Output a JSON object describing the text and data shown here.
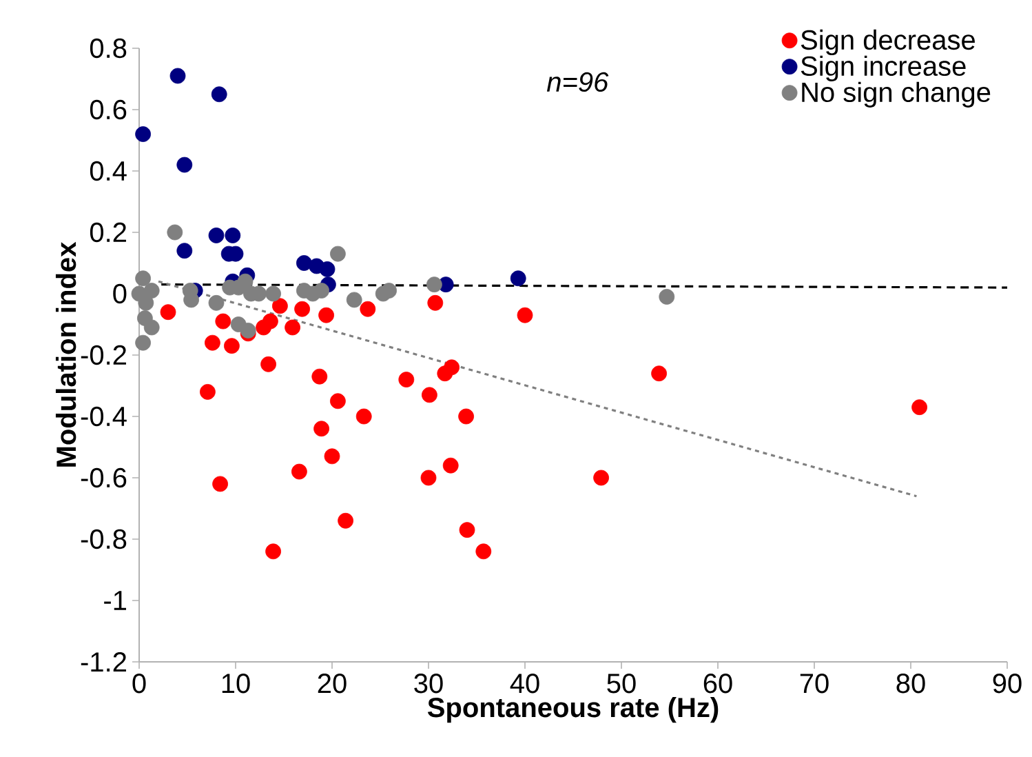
{
  "chart_data": {
    "type": "scatter",
    "xlabel": "Spontaneous rate (Hz)",
    "ylabel": "Modulation index",
    "xlim": [
      0,
      90
    ],
    "ylim": [
      -1.2,
      0.8
    ],
    "xticks": [
      0,
      10,
      20,
      30,
      40,
      50,
      60,
      70,
      80,
      90
    ],
    "yticks": [
      -1.2,
      -1,
      -0.8,
      -0.6,
      -0.4,
      -0.2,
      0,
      0.2,
      0.4,
      0.6,
      0.8
    ],
    "grid": false,
    "legend": "top right",
    "annotations": [
      "n=96"
    ],
    "series": [
      {
        "name": "Sign decrease",
        "marker": "circle",
        "color": "#ff0000",
        "x": [
          3.0,
          7.6,
          8.7,
          9.6,
          7.1,
          8.4,
          11.3,
          12.9,
          13.6,
          14.6,
          13.4,
          13.9,
          15.9,
          16.9,
          19.4,
          16.6,
          18.7,
          18.9,
          20.6,
          20.0,
          21.4,
          23.3,
          23.7,
          27.7,
          30.1,
          30.0,
          30.7,
          31.7,
          32.4,
          32.3,
          33.9,
          34.0,
          35.7,
          40.0,
          53.9,
          47.9,
          80.9
        ],
        "values": [
          -0.06,
          -0.16,
          -0.09,
          -0.17,
          -0.32,
          -0.62,
          -0.13,
          -0.11,
          -0.09,
          -0.04,
          -0.23,
          -0.84,
          -0.11,
          -0.05,
          -0.07,
          -0.58,
          -0.27,
          -0.44,
          -0.35,
          -0.53,
          -0.74,
          -0.4,
          -0.05,
          -0.28,
          -0.33,
          -0.6,
          -0.03,
          -0.26,
          -0.24,
          -0.56,
          -0.4,
          -0.77,
          -0.84,
          -0.07,
          -0.26,
          -0.6,
          -0.37
        ]
      },
      {
        "name": "Sign increase",
        "marker": "circle",
        "color": "#000080",
        "x": [
          0.4,
          4.0,
          8.3,
          4.7,
          4.7,
          8.0,
          9.7,
          9.3,
          10.0,
          11.2,
          5.8,
          9.7,
          17.1,
          18.4,
          19.5,
          19.6,
          31.8,
          39.3
        ],
        "values": [
          0.52,
          0.71,
          0.65,
          0.42,
          0.14,
          0.19,
          0.19,
          0.13,
          0.13,
          0.06,
          0.01,
          0.04,
          0.1,
          0.09,
          0.08,
          0.03,
          0.03,
          0.05
        ]
      },
      {
        "name": "No sign change",
        "marker": "circle",
        "color": "#808080",
        "x": [
          0.4,
          0.0,
          1.3,
          0.7,
          0.6,
          1.3,
          0.4,
          3.7,
          5.3,
          5.4,
          8.0,
          9.4,
          10.3,
          11.0,
          11.6,
          12.4,
          13.9,
          10.3,
          11.3,
          17.1,
          18.9,
          20.6,
          18.0,
          22.3,
          25.3,
          25.9,
          30.6,
          54.7
        ],
        "values": [
          0.05,
          0.0,
          0.01,
          -0.03,
          -0.08,
          -0.11,
          -0.16,
          0.2,
          0.01,
          -0.02,
          -0.03,
          0.02,
          0.02,
          0.04,
          0.0,
          0.0,
          0.0,
          -0.1,
          -0.12,
          0.01,
          0.01,
          0.13,
          0.0,
          -0.02,
          0.0,
          0.01,
          0.03,
          -0.01
        ]
      },
      {
        "type": "line",
        "marker": "none",
        "color": "#000000",
        "line_style": "dashed",
        "x": [
          2.3,
          90
        ],
        "values": [
          0.03,
          0.02
        ]
      },
      {
        "type": "line",
        "marker": "none",
        "color": "#808080",
        "line_style": "dotted",
        "x": [
          2.0,
          80.6
        ],
        "values": [
          0.04,
          -0.66
        ]
      }
    ]
  }
}
